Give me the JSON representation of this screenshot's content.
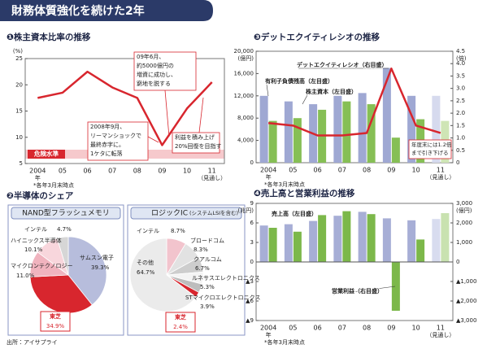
{
  "header": {
    "title": "財務体質強化を続けた2年"
  },
  "shares_title": "❷半導体のシェア",
  "source": "出所：アイサプライ",
  "chart_data": [
    {
      "type": "line",
      "title": "❶株主資本比率の推移",
      "y_unit": "(%)",
      "categories": [
        "2004",
        "05",
        "06",
        "07",
        "08",
        "09",
        "10",
        "11"
      ],
      "x_unit": "年",
      "forecast_label": "（見通し）",
      "values": [
        17.5,
        18.5,
        22.5,
        19.5,
        17.5,
        8.5,
        15.5,
        20.5
      ],
      "color": "#d8262e",
      "ylim": [
        5,
        25
      ],
      "yticks": [
        5,
        10,
        15,
        20,
        25
      ],
      "danger_label": "危険水準",
      "annotations": [
        [
          "09年6月、",
          "約5000億円の",
          "増資に成功し、",
          "窮地を脱する"
        ],
        [
          "2008年9月、",
          "リーマンショックで",
          "最終赤字に。",
          "1ケタに転落"
        ],
        [
          "利益を積み上げ",
          "20%回復を目指す"
        ]
      ],
      "note": "*各年3月末時点"
    },
    {
      "type": "pie",
      "title": "NAND型フラッシュメモリ",
      "categories": [
        "サムスン電子",
        "東芝",
        "マイクロンテクノロジー",
        "ハイニックス半導体",
        "インテル"
      ],
      "values": [
        39.3,
        34.9,
        11.0,
        10.1,
        4.7
      ],
      "value_labels": [
        "39.3%",
        "34.9%",
        "11.0%",
        "10.1%",
        "4.7%"
      ],
      "colors": [
        "#b7bddc",
        "#d8262e",
        "#f0b3be",
        "#f8d6dc",
        "#d6d6d6"
      ]
    },
    {
      "type": "pie",
      "title": "ロジックIC",
      "subtitle": "(システムLSIを含む)",
      "categories": [
        "インテル",
        "ブロードコム",
        "クアルコム",
        "ルネサスエレクトロニクス",
        "STマイクロエレクトロニクス",
        "東芝",
        "その他"
      ],
      "values": [
        8.7,
        8.3,
        6.7,
        5.3,
        3.9,
        2.4,
        64.7
      ],
      "value_labels": [
        "8.7%",
        "8.3%",
        "6.7%",
        "5.3%",
        "3.9%",
        "2.4%",
        "64.7%"
      ],
      "colors": [
        "#f2c4cd",
        "#e2e2e2",
        "#cdcdcd",
        "#f4f4f4",
        "#bdbdbd",
        "#d8262e",
        "#ebebeb"
      ]
    },
    {
      "type": "bar_line",
      "title": "❸デットエクイティレシオの推移",
      "y_unit": "(億円)",
      "y2_unit": "(倍)",
      "categories": [
        "2004",
        "05",
        "06",
        "07",
        "08",
        "09",
        "10",
        "11"
      ],
      "x_unit": "年",
      "forecast_label": "（見通し）",
      "series": [
        {
          "name": "有利子負債残高（左目盛）",
          "type": "bar",
          "values": [
            12000,
            11000,
            10500,
            12000,
            12500,
            17000,
            12000,
            12000
          ],
          "colors": [
            "#9fa8d3",
            "#9fa8d3",
            "#9fa8d3",
            "#9fa8d3",
            "#9fa8d3",
            "#9fa8d3",
            "#9fa8d3",
            "#d6daee"
          ]
        },
        {
          "name": "株主資本（左目盛）",
          "type": "bar",
          "values": [
            7500,
            8000,
            9500,
            11000,
            10500,
            4500,
            7800,
            7500
          ],
          "colors": [
            "#86bf55",
            "#86bf55",
            "#86bf55",
            "#86bf55",
            "#86bf55",
            "#86bf55",
            "#86bf55",
            "#cfe5b5"
          ]
        },
        {
          "name": "デットエクイティレシオ（右目盛）",
          "type": "line",
          "axis": "y2",
          "color": "#d8262e",
          "values": [
            1.6,
            1.5,
            1.1,
            1.1,
            1.2,
            3.8,
            1.5,
            1.2
          ]
        }
      ],
      "ylim": [
        0,
        20000
      ],
      "yticks": [
        0,
        {
          "value": 4000,
          "label": "4,000"
        },
        {
          "value": 8000,
          "label": "8,000"
        },
        {
          "value": 12000,
          "label": "12,000"
        },
        {
          "value": 16000,
          "label": "16,000"
        },
        {
          "value": 20000,
          "label": "20,000"
        }
      ],
      "y2lim": [
        0,
        4.5
      ],
      "y2ticks": [
        0,
        0.5,
        {
          "value": 1,
          "label": "1.0"
        },
        1.5,
        {
          "value": 2,
          "label": "2.0"
        },
        2.5,
        {
          "value": 3,
          "label": "3.0"
        },
        3.5,
        {
          "value": 4,
          "label": "4.0"
        },
        4.5
      ],
      "annotation": [
        "年度末には1.2倍",
        "まで引き下げる"
      ],
      "note": "*各年3月末時点"
    },
    {
      "type": "bar",
      "title": "❹売上高と営業利益の推移",
      "y_unit": "(兆円)",
      "y2_unit": "(億円)",
      "categories": [
        "2004",
        "05",
        "06",
        "07",
        "08",
        "09",
        "10",
        "11"
      ],
      "x_unit": "年",
      "forecast_label": "（見通し）",
      "series": [
        {
          "name": "売上高（左目盛）",
          "type": "bar",
          "values": [
            5.6,
            5.8,
            6.3,
            7.1,
            7.7,
            6.7,
            6.4,
            6.6
          ],
          "colors": [
            "#a7aed6",
            "#a7aed6",
            "#a7aed6",
            "#a7aed6",
            "#a7aed6",
            "#a7aed6",
            "#a7aed6",
            "#d8dcef"
          ]
        },
        {
          "name": "営業利益（右目盛）",
          "type": "bar",
          "axis": "y2",
          "values": [
            1750,
            1550,
            2400,
            2600,
            2450,
            -2500,
            1150,
            2500
          ],
          "colors": [
            "#7cb84a",
            "#7cb84a",
            "#7cb84a",
            "#7cb84a",
            "#7cb84a",
            "#7cb84a",
            "#7cb84a",
            "#c9e2b0"
          ]
        }
      ],
      "ylim": [
        -9,
        9
      ],
      "yticks": [
        {
          "value": -9,
          "label": "▲9"
        },
        {
          "value": -6,
          "label": "▲6"
        },
        {
          "value": -3,
          "label": "▲3"
        },
        0,
        3,
        6,
        9
      ],
      "y2lim": [
        -3000,
        3000
      ],
      "y2ticks": [
        {
          "value": -3000,
          "label": "▲3,000"
        },
        {
          "value": -2000,
          "label": "▲2,000"
        },
        {
          "value": -1000,
          "label": "▲1,000"
        },
        0,
        {
          "value": 1000,
          "label": "1,000"
        },
        {
          "value": 2000,
          "label": "2,000"
        },
        {
          "value": 3000,
          "label": "3,000"
        }
      ],
      "note": "*各年3月末時点"
    }
  ]
}
